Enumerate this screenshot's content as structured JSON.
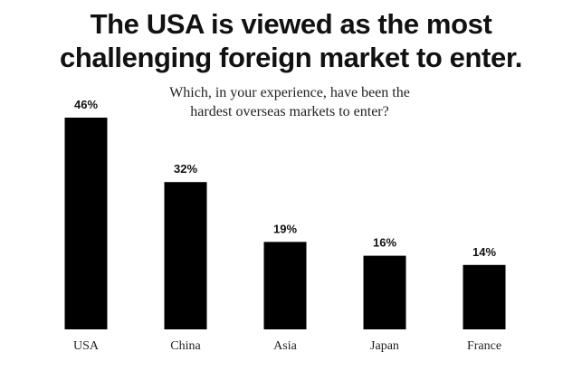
{
  "header": {
    "title_line1": "The USA is viewed as the most",
    "title_line2": "challenging foreign market to enter."
  },
  "question": {
    "line1": "Which, in your experience, have been the",
    "line2": "hardest overseas markets to enter?"
  },
  "chart_data": {
    "type": "bar",
    "title": "The USA is viewed as the most challenging foreign market to enter.",
    "subtitle": "Which, in your experience, have been the hardest overseas markets to enter?",
    "categories": [
      "USA",
      "China",
      "Asia",
      "Japan",
      "France"
    ],
    "values": [
      46,
      32,
      19,
      16,
      14
    ],
    "value_labels": [
      "46%",
      "32%",
      "19%",
      "16%",
      "14%"
    ],
    "unit": "%",
    "ylim": [
      0,
      46
    ],
    "grid": false,
    "bar_color": "#000000"
  }
}
